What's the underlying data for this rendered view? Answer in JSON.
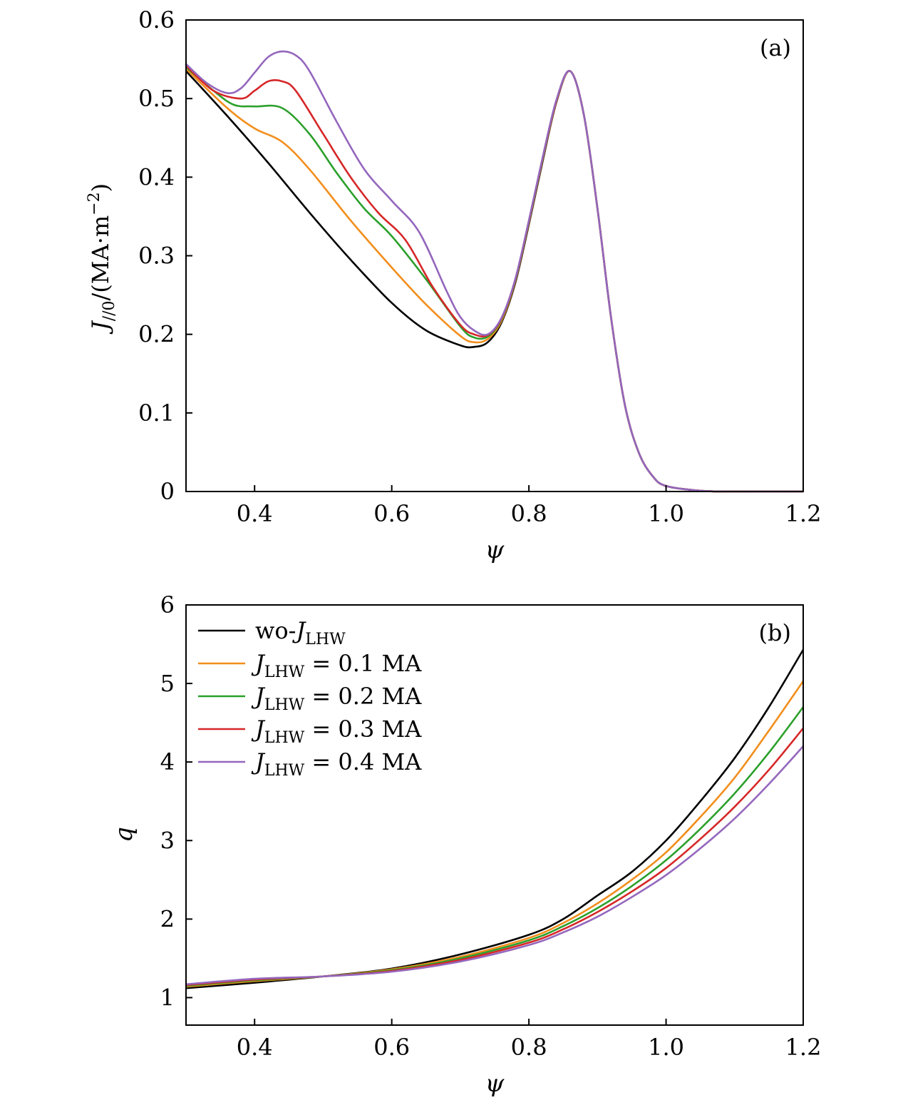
{
  "colors": {
    "wo": "#000000",
    "j01": "#f28e1c",
    "j02": "#2ca02c",
    "j03": "#d62728",
    "j04": "#9467bd"
  },
  "chart_data": [
    {
      "type": "line",
      "panel": "(a)",
      "xlabel": "ψ",
      "ylabel": "J//0/(MA·m⁻²)",
      "ylabel_parts": {
        "J": "J",
        "sub": "//0",
        "rest": "/(MA·m",
        "sup": "−2",
        "close": ")"
      },
      "xlim": [
        0.3,
        1.2
      ],
      "ylim": [
        0,
        0.6
      ],
      "xticks": [
        0.4,
        0.6,
        0.8,
        1.0,
        1.2
      ],
      "xtick_labels": [
        "0.4",
        "0.6",
        "0.8",
        "1.0",
        "1.2"
      ],
      "yticks": [
        0,
        0.1,
        0.2,
        0.3,
        0.4,
        0.5,
        0.6
      ],
      "ytick_labels": [
        "0",
        "0.1",
        "0.2",
        "0.3",
        "0.4",
        "0.5",
        "0.6"
      ],
      "legend_position": "bottom-left",
      "series": [
        {
          "name": "wo-J_LHW",
          "label_prefix": "wo-",
          "label_value": "",
          "color_key": "wo",
          "x": [
            0.3,
            0.36,
            0.42,
            0.48,
            0.54,
            0.6,
            0.65,
            0.7,
            0.72,
            0.74,
            0.76,
            0.78,
            0.8,
            0.82,
            0.84,
            0.86,
            0.88,
            0.9,
            0.92,
            0.94,
            0.96,
            0.98,
            1.0,
            1.05,
            1.1,
            1.2
          ],
          "y": [
            0.535,
            0.478,
            0.418,
            0.355,
            0.295,
            0.24,
            0.205,
            0.186,
            0.184,
            0.19,
            0.215,
            0.265,
            0.34,
            0.42,
            0.495,
            0.535,
            0.48,
            0.36,
            0.22,
            0.11,
            0.05,
            0.02,
            0.007,
            0.001,
            0,
            0
          ]
        },
        {
          "name": "J_LHW = 0.1 MA",
          "label_prefix": "",
          "label_value": " = 0.1 MA",
          "color_key": "j01",
          "x": [
            0.3,
            0.36,
            0.4,
            0.44,
            0.48,
            0.54,
            0.6,
            0.65,
            0.7,
            0.72,
            0.74,
            0.76,
            0.78,
            0.8,
            0.82,
            0.84,
            0.86,
            0.88,
            0.9,
            0.92,
            0.94,
            0.96,
            0.98,
            1.0,
            1.05,
            1.1,
            1.2
          ],
          "y": [
            0.538,
            0.488,
            0.462,
            0.445,
            0.41,
            0.345,
            0.285,
            0.238,
            0.198,
            0.19,
            0.194,
            0.217,
            0.267,
            0.342,
            0.422,
            0.496,
            0.535,
            0.48,
            0.36,
            0.22,
            0.11,
            0.05,
            0.02,
            0.007,
            0.001,
            0,
            0
          ]
        },
        {
          "name": "J_LHW = 0.2 MA",
          "label_prefix": "",
          "label_value": " = 0.2 MA",
          "color_key": "j02",
          "x": [
            0.3,
            0.34,
            0.37,
            0.4,
            0.44,
            0.48,
            0.52,
            0.56,
            0.6,
            0.65,
            0.7,
            0.72,
            0.74,
            0.76,
            0.78,
            0.8,
            0.82,
            0.84,
            0.86,
            0.88,
            0.9,
            0.92,
            0.94,
            0.96,
            0.98,
            1.0,
            1.05,
            1.1,
            1.2
          ],
          "y": [
            0.54,
            0.51,
            0.492,
            0.49,
            0.488,
            0.455,
            0.405,
            0.36,
            0.325,
            0.27,
            0.21,
            0.196,
            0.197,
            0.219,
            0.268,
            0.343,
            0.423,
            0.497,
            0.535,
            0.48,
            0.36,
            0.22,
            0.11,
            0.05,
            0.02,
            0.007,
            0.001,
            0,
            0
          ]
        },
        {
          "name": "J_LHW = 0.3 MA",
          "label_prefix": "",
          "label_value": " = 0.3 MA",
          "color_key": "j03",
          "x": [
            0.3,
            0.34,
            0.38,
            0.4,
            0.42,
            0.44,
            0.46,
            0.5,
            0.54,
            0.58,
            0.62,
            0.66,
            0.7,
            0.72,
            0.74,
            0.76,
            0.78,
            0.8,
            0.82,
            0.84,
            0.86,
            0.88,
            0.9,
            0.92,
            0.94,
            0.96,
            0.98,
            1.0,
            1.05,
            1.1,
            1.2
          ],
          "y": [
            0.542,
            0.51,
            0.5,
            0.51,
            0.522,
            0.522,
            0.51,
            0.455,
            0.4,
            0.355,
            0.32,
            0.26,
            0.212,
            0.2,
            0.199,
            0.22,
            0.269,
            0.344,
            0.424,
            0.497,
            0.535,
            0.48,
            0.36,
            0.22,
            0.11,
            0.05,
            0.02,
            0.007,
            0.001,
            0,
            0
          ]
        },
        {
          "name": "J_LHW = 0.4 MA",
          "label_prefix": "",
          "label_value": " = 0.4 MA",
          "color_key": "j04",
          "x": [
            0.3,
            0.33,
            0.36,
            0.38,
            0.4,
            0.42,
            0.44,
            0.46,
            0.48,
            0.52,
            0.56,
            0.6,
            0.64,
            0.68,
            0.7,
            0.72,
            0.74,
            0.76,
            0.78,
            0.8,
            0.82,
            0.84,
            0.86,
            0.88,
            0.9,
            0.92,
            0.94,
            0.96,
            0.98,
            1.0,
            1.05,
            1.1,
            1.2
          ],
          "y": [
            0.544,
            0.52,
            0.507,
            0.513,
            0.533,
            0.553,
            0.56,
            0.555,
            0.535,
            0.47,
            0.41,
            0.37,
            0.33,
            0.255,
            0.222,
            0.205,
            0.2,
            0.221,
            0.27,
            0.345,
            0.425,
            0.498,
            0.535,
            0.48,
            0.36,
            0.22,
            0.11,
            0.05,
            0.02,
            0.007,
            0.001,
            0,
            0
          ]
        }
      ]
    },
    {
      "type": "line",
      "panel": "(b)",
      "xlabel": "ψ",
      "ylabel": "q",
      "xlim": [
        0.3,
        1.2
      ],
      "ylim": [
        0.65,
        6
      ],
      "xticks": [
        0.4,
        0.6,
        0.8,
        1.0,
        1.2
      ],
      "xtick_labels": [
        "0.4",
        "0.6",
        "0.8",
        "1.0",
        "1.2"
      ],
      "yticks": [
        1,
        2,
        3,
        4,
        5,
        6
      ],
      "ytick_labels": [
        "1",
        "2",
        "3",
        "4",
        "5",
        "6"
      ],
      "legend_position": "top-left",
      "series": [
        {
          "name": "wo-J_LHW",
          "label_prefix": "wo-",
          "label_value": "",
          "color_key": "wo",
          "x": [
            0.3,
            0.4,
            0.5,
            0.6,
            0.7,
            0.8,
            0.85,
            0.9,
            0.95,
            1.0,
            1.05,
            1.1,
            1.15,
            1.2
          ],
          "y": [
            1.12,
            1.19,
            1.27,
            1.37,
            1.55,
            1.8,
            2.0,
            2.3,
            2.6,
            3.0,
            3.5,
            4.05,
            4.7,
            5.43
          ]
        },
        {
          "name": "J_LHW = 0.1 MA",
          "label_prefix": "",
          "label_value": " = 0.1 MA",
          "color_key": "j01",
          "x": [
            0.3,
            0.4,
            0.5,
            0.6,
            0.7,
            0.8,
            0.85,
            0.9,
            0.95,
            1.0,
            1.05,
            1.1,
            1.15,
            1.2
          ],
          "y": [
            1.14,
            1.21,
            1.27,
            1.36,
            1.52,
            1.76,
            1.95,
            2.2,
            2.5,
            2.85,
            3.3,
            3.8,
            4.4,
            5.03
          ]
        },
        {
          "name": "J_LHW = 0.2 MA",
          "label_prefix": "",
          "label_value": " = 0.2 MA",
          "color_key": "j02",
          "x": [
            0.3,
            0.4,
            0.5,
            0.6,
            0.7,
            0.8,
            0.85,
            0.9,
            0.95,
            1.0,
            1.05,
            1.1,
            1.15,
            1.2
          ],
          "y": [
            1.15,
            1.22,
            1.27,
            1.35,
            1.5,
            1.73,
            1.91,
            2.14,
            2.42,
            2.75,
            3.15,
            3.6,
            4.12,
            4.7
          ]
        },
        {
          "name": "J_LHW = 0.3 MA",
          "label_prefix": "",
          "label_value": " = 0.3 MA",
          "color_key": "j03",
          "x": [
            0.3,
            0.4,
            0.5,
            0.6,
            0.7,
            0.8,
            0.85,
            0.9,
            0.95,
            1.0,
            1.05,
            1.1,
            1.15,
            1.2
          ],
          "y": [
            1.16,
            1.23,
            1.27,
            1.34,
            1.48,
            1.7,
            1.87,
            2.09,
            2.35,
            2.65,
            3.02,
            3.43,
            3.9,
            4.43
          ]
        },
        {
          "name": "J_LHW = 0.4 MA",
          "label_prefix": "",
          "label_value": " = 0.4 MA",
          "color_key": "j04",
          "x": [
            0.3,
            0.4,
            0.5,
            0.6,
            0.7,
            0.8,
            0.85,
            0.9,
            0.95,
            1.0,
            1.05,
            1.1,
            1.15,
            1.2
          ],
          "y": [
            1.17,
            1.24,
            1.27,
            1.33,
            1.46,
            1.67,
            1.83,
            2.03,
            2.28,
            2.56,
            2.9,
            3.28,
            3.72,
            4.2
          ]
        }
      ]
    }
  ]
}
